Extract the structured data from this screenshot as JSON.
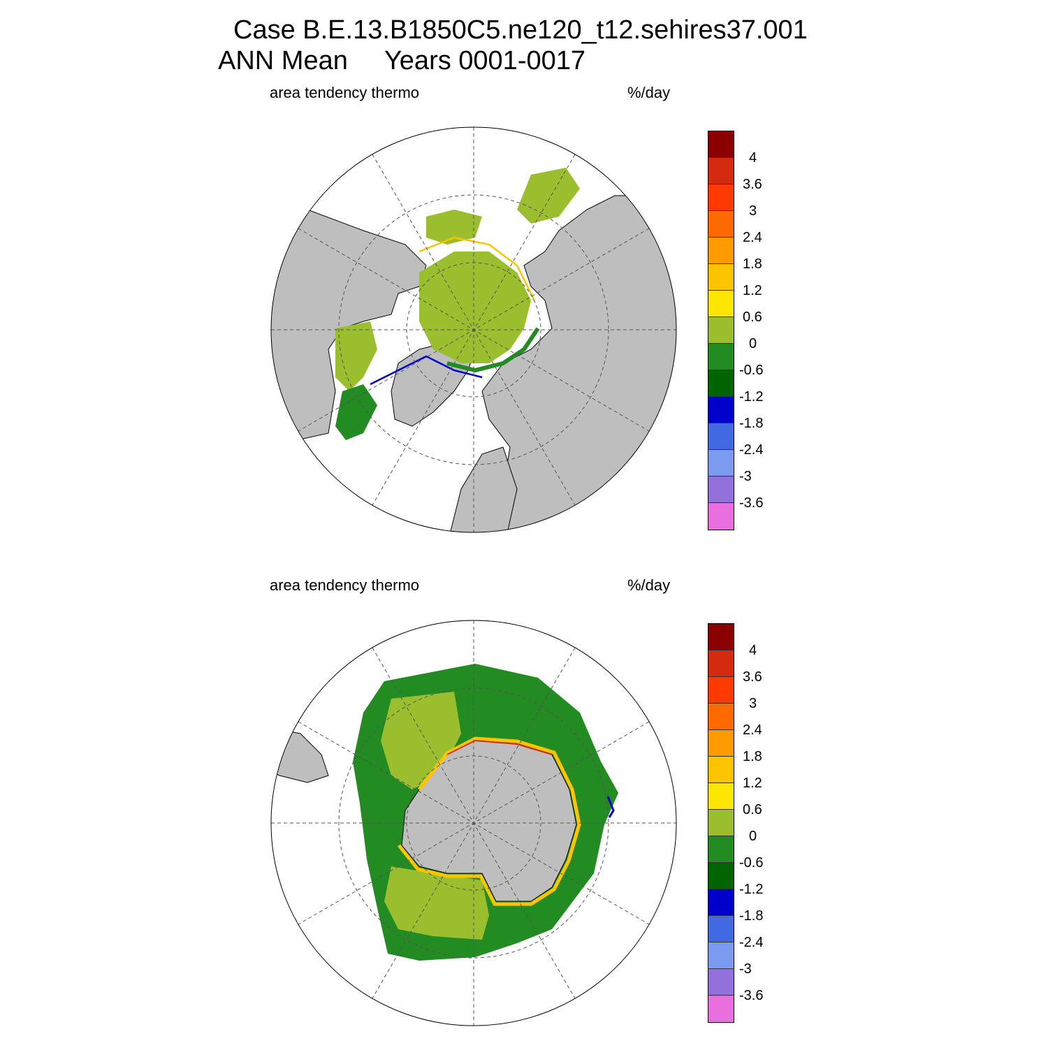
{
  "title": {
    "line1": "Case B.E.13.B1850C5.ne120_t12.sehires37.001",
    "line2": "ANN Mean     Years 0001-0017"
  },
  "panels": [
    {
      "name": "north",
      "left_label": "area tendency thermo",
      "right_label": "%/day"
    },
    {
      "name": "south",
      "left_label": "area tendency thermo",
      "right_label": "%/day"
    }
  ],
  "colorbar": {
    "colors": [
      "#8B0000",
      "#D42A10",
      "#FF3A00",
      "#FF6A00",
      "#FF9A00",
      "#FFC400",
      "#FFE600",
      "#9BBE2E",
      "#228B22",
      "#006400",
      "#0000CD",
      "#4169E1",
      "#7B9BF0",
      "#9370DB",
      "#E86FDD"
    ],
    "labels": [
      "4",
      "3.6",
      "3",
      "2.4",
      "1.8",
      "1.2",
      "0.6",
      "0",
      "-0.6",
      "-1.2",
      "-1.8",
      "-2.4",
      "-3",
      "-3.6"
    ]
  },
  "map_colors": {
    "land": "#BEBEBE",
    "ocean": "#FFFFFF",
    "coast": "#000000"
  }
}
